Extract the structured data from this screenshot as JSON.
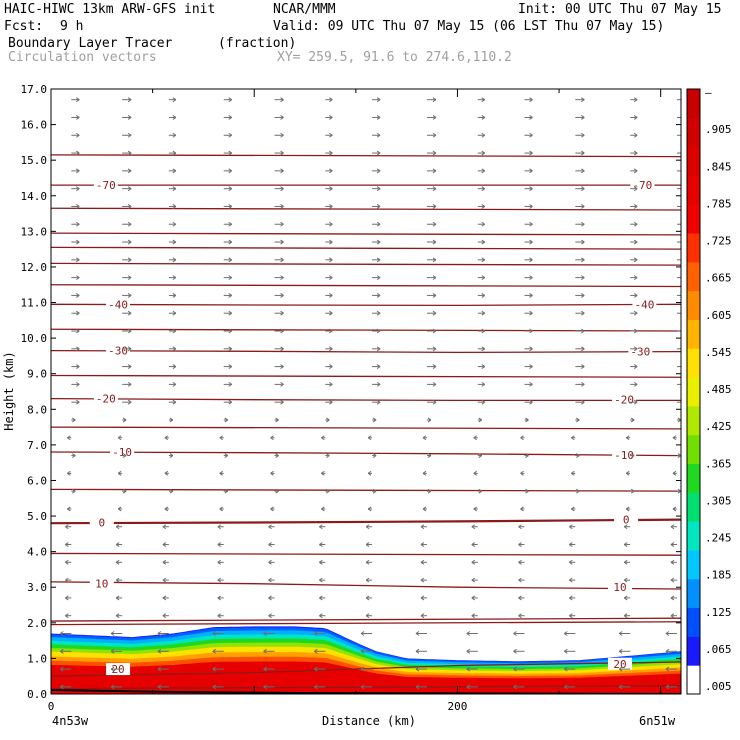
{
  "header": {
    "model": "HAIC-HIWC 13km ARW-GFS init",
    "org": "NCAR/MMM",
    "init": "Init: 00 UTC Thu 07 May 15",
    "fcst_label": "Fcst:",
    "fcst_value": "9 h",
    "valid": "Valid: 09 UTC Thu 07 May 15 (06 LST Thu 07 May 15)",
    "field": "Boundary Layer Tracer",
    "field_units": "(fraction)",
    "overlay": "Circulation vectors",
    "xy": "XY= 259.5, 91.6 to 274.6,110.2"
  },
  "chart_data": {
    "type": "heatmap",
    "title": "Boundary Layer Tracer",
    "units": "(fraction)",
    "xlabel": "Distance (km)",
    "ylabel": "Height (km)",
    "xlim": [
      0,
      310
    ],
    "ylim": [
      0,
      17
    ],
    "x_ticks": [
      {
        "value": 0,
        "label": "0"
      },
      {
        "value": 200,
        "label": "200"
      }
    ],
    "x_end_labels": {
      "left": "4n53w",
      "right": "6n51w"
    },
    "y_ticks": [
      "0.0",
      "1.0",
      "2.0",
      "3.0",
      "4.0",
      "5.0",
      "6.0",
      "7.0",
      "8.0",
      "9.0",
      "10.0",
      "11.0",
      "12.0",
      "13.0",
      "14.0",
      "15.0",
      "16.0",
      "17.0"
    ],
    "colorbar": {
      "labels": [
        ".005",
        ".065",
        ".125",
        ".185",
        ".245",
        ".305",
        ".365",
        ".425",
        ".485",
        ".545",
        ".605",
        ".665",
        ".725",
        ".785",
        ".845",
        ".905",
        "–"
      ],
      "colors": [
        "#ffffff",
        "#1a1aff",
        "#0050ff",
        "#0090ff",
        "#00c8ff",
        "#00e6c0",
        "#00e070",
        "#20d820",
        "#70e000",
        "#b0e800",
        "#e8f000",
        "#ffe000",
        "#ffb400",
        "#ff8c00",
        "#ff6000",
        "#ff3000",
        "#f00000",
        "#e60000",
        "#dc0000",
        "#d20000",
        "#c80000"
      ]
    },
    "tracer_top_km": [
      [
        0,
        1.7
      ],
      [
        20,
        1.65
      ],
      [
        40,
        1.6
      ],
      [
        60,
        1.7
      ],
      [
        80,
        1.88
      ],
      [
        100,
        1.9
      ],
      [
        120,
        1.9
      ],
      [
        135,
        1.85
      ],
      [
        150,
        1.45
      ],
      [
        160,
        1.2
      ],
      [
        175,
        1.0
      ],
      [
        200,
        0.95
      ],
      [
        230,
        0.92
      ],
      [
        260,
        0.95
      ],
      [
        280,
        1.05
      ],
      [
        300,
        1.15
      ],
      [
        310,
        1.2
      ]
    ],
    "isotherms": [
      {
        "label": "20",
        "z": [
          [
            0,
            0.5
          ],
          [
            100,
            0.6
          ],
          [
            200,
            0.8
          ],
          [
            310,
            0.9
          ]
        ],
        "label_at": [
          {
            "x": 33,
            "z": 0.7
          },
          {
            "x": 280,
            "z": 0.85
          }
        ]
      },
      {
        "label": "10",
        "z": [
          [
            0,
            3.15
          ],
          [
            100,
            3.1
          ],
          [
            200,
            3.0
          ],
          [
            310,
            2.95
          ]
        ],
        "label_at": [
          {
            "x": 25,
            "z": 3.1
          },
          {
            "x": 280,
            "z": 3.0
          }
        ]
      },
      {
        "label": "0",
        "z": [
          [
            0,
            4.8
          ],
          [
            100,
            4.82
          ],
          [
            200,
            4.85
          ],
          [
            310,
            4.9
          ]
        ],
        "label_at": [
          {
            "x": 25,
            "z": 4.82
          },
          {
            "x": 283,
            "z": 4.9
          }
        ]
      },
      {
        "label": "-10",
        "z": [
          [
            0,
            6.8
          ],
          [
            100,
            6.78
          ],
          [
            200,
            6.75
          ],
          [
            310,
            6.7
          ]
        ],
        "label_at": [
          {
            "x": 35,
            "z": 6.8
          },
          {
            "x": 282,
            "z": 6.72
          }
        ]
      },
      {
        "label": "-20",
        "z": [
          [
            0,
            8.3
          ],
          [
            100,
            8.27
          ],
          [
            200,
            8.25
          ],
          [
            310,
            8.25
          ]
        ],
        "label_at": [
          {
            "x": 27,
            "z": 8.3
          },
          {
            "x": 282,
            "z": 8.27
          }
        ]
      },
      {
        "label": "-30",
        "z": [
          [
            0,
            9.65
          ],
          [
            100,
            9.63
          ],
          [
            200,
            9.6
          ],
          [
            310,
            9.62
          ]
        ],
        "label_at": [
          {
            "x": 33,
            "z": 9.65
          },
          {
            "x": 290,
            "z": 9.62
          }
        ]
      },
      {
        "label": "-40",
        "z": [
          [
            0,
            10.95
          ],
          [
            100,
            10.93
          ],
          [
            200,
            10.92
          ],
          [
            310,
            10.95
          ]
        ],
        "label_at": [
          {
            "x": 33,
            "z": 10.95
          },
          {
            "x": 292,
            "z": 10.95
          }
        ]
      },
      {
        "label": "-70",
        "z": [
          [
            0,
            14.3
          ],
          [
            100,
            14.3
          ],
          [
            200,
            14.3
          ],
          [
            310,
            14.3
          ]
        ],
        "label_at": [
          {
            "x": 27,
            "z": 14.3
          },
          {
            "x": 291,
            "z": 14.3
          }
        ]
      }
    ],
    "unlabeled_isotherm_z": [
      0.15,
      1.95,
      2.05,
      3.95,
      5.75,
      7.5,
      8.95,
      10.25,
      11.5,
      12.1,
      12.55,
      12.95,
      13.65,
      15.15
    ],
    "vector_columns_km": [
      -13,
      10,
      35,
      58,
      85,
      110,
      135,
      158,
      185,
      210,
      233,
      258,
      285,
      308
    ]
  }
}
